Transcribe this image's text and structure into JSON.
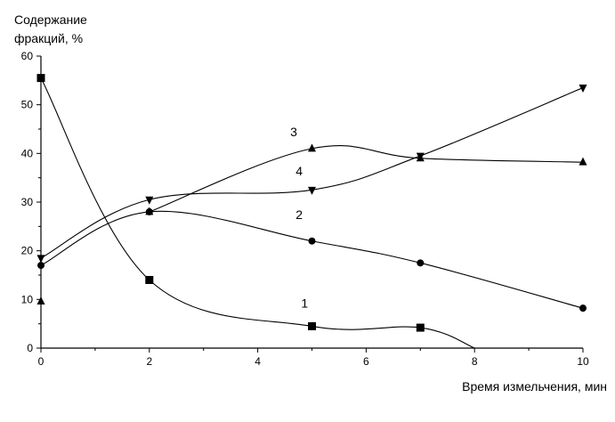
{
  "chart_data": {
    "type": "line",
    "title": "",
    "ylabel_lines": [
      "Содержание",
      "фракций, %"
    ],
    "xlabel": "Время измельчения, мин",
    "xlim": [
      0,
      10
    ],
    "ylim": [
      0,
      60
    ],
    "x_ticks": [
      0,
      2,
      4,
      6,
      8,
      10
    ],
    "y_ticks": [
      0,
      10,
      20,
      30,
      40,
      50,
      60
    ],
    "grid": false,
    "series": [
      {
        "name": "1",
        "marker": "square",
        "points": [
          [
            0,
            55.5
          ],
          [
            2,
            14
          ],
          [
            5,
            4.5
          ],
          [
            7,
            4.2
          ],
          [
            8,
            0
          ]
        ],
        "label_pos": [
          4.8,
          8.3
        ]
      },
      {
        "name": "2",
        "marker": "circle",
        "points": [
          [
            0,
            17
          ],
          [
            2,
            28
          ],
          [
            5,
            22
          ],
          [
            7,
            17.5
          ],
          [
            10,
            8.2
          ]
        ],
        "label_pos": [
          4.7,
          26.5
        ]
      },
      {
        "name": "3",
        "marker": "triangle-up",
        "points": [
          [
            0,
            9.6
          ],
          [
            2,
            28
          ],
          [
            5,
            41
          ],
          [
            7,
            39
          ],
          [
            10,
            38.2
          ]
        ],
        "label_pos": [
          4.6,
          43.5
        ]
      },
      {
        "name": "4",
        "marker": "triangle-down",
        "points": [
          [
            0,
            18.5
          ],
          [
            2,
            30.5
          ],
          [
            5,
            32.5
          ],
          [
            7,
            39.5
          ],
          [
            10,
            53.5
          ]
        ],
        "label_pos": [
          4.7,
          35.5
        ]
      }
    ]
  }
}
